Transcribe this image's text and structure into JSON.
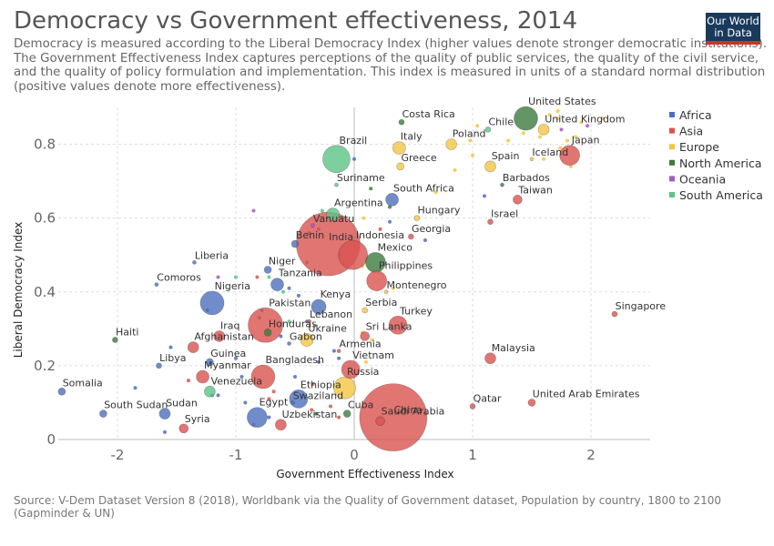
{
  "page": {
    "title": "Democracy vs Government effectiveness, 2014",
    "subtitle": "Democracy is measured according to the Liberal Democracy Index (higher values denote stronger democratic institutions). The Government Effectiveness Index captures perceptions of the quality of public services, the quality of the civil service, and the quality of policy formulation and implementation. This index is measured in units of a standard normal distribution (positive values denote more effectiveness).",
    "logo_line1": "Our World",
    "logo_line2": "in Data",
    "source": "Source: V-Dem Dataset Version 8 (2018), Worldbank via the Quality of Government dataset, Population by country, 1800 to 2100 (Gapminder & UN)"
  },
  "chart_data": {
    "type": "scatter",
    "xlabel": "Government Effectiveness Index",
    "ylabel": "Liberal Democracy Index",
    "xlim": [
      -2.5,
      2.5
    ],
    "ylim": [
      0,
      0.9
    ],
    "xticks": [
      -2,
      -1,
      0,
      1,
      2
    ],
    "yticks": [
      0,
      0.2,
      0.4,
      0.6,
      0.8
    ],
    "xtick_labels": [
      "-2",
      "-1",
      "0",
      "1",
      "2"
    ],
    "ytick_labels": [
      "0",
      "0.2",
      "0.4",
      "0.6",
      "0.8"
    ],
    "grid": true,
    "legend": "right",
    "series": [
      {
        "name": "Africa",
        "color": "#4c6fbd"
      },
      {
        "name": "Asia",
        "color": "#d9534f"
      },
      {
        "name": "Europe",
        "color": "#f5c542"
      },
      {
        "name": "North America",
        "color": "#3d7a3d"
      },
      {
        "name": "Oceania",
        "color": "#a659c4"
      },
      {
        "name": "South America",
        "color": "#5cc486"
      }
    ],
    "points": [
      {
        "label": "Costa Rica",
        "x": 0.4,
        "y": 0.86,
        "region": "North America",
        "size": 3
      },
      {
        "label": "Chile",
        "x": 1.13,
        "y": 0.84,
        "region": "South America",
        "size": 3
      },
      {
        "label": "United States",
        "x": 1.45,
        "y": 0.87,
        "region": "North America",
        "size": 13
      },
      {
        "label": "United Kingdom",
        "x": 1.6,
        "y": 0.84,
        "region": "Europe",
        "size": 6
      },
      {
        "label": "Japan",
        "x": 1.82,
        "y": 0.77,
        "region": "Asia",
        "size": 11
      },
      {
        "label": "Iceland",
        "x": 1.5,
        "y": 0.76,
        "region": "Europe",
        "size": 2
      },
      {
        "label": "Italy",
        "x": 0.38,
        "y": 0.79,
        "region": "Europe",
        "size": 7
      },
      {
        "label": "Poland",
        "x": 0.82,
        "y": 0.8,
        "region": "Europe",
        "size": 6
      },
      {
        "label": "Spain",
        "x": 1.15,
        "y": 0.74,
        "region": "Europe",
        "size": 6
      },
      {
        "label": "Greece",
        "x": 0.39,
        "y": 0.74,
        "region": "Europe",
        "size": 4
      },
      {
        "label": "Brazil",
        "x": -0.15,
        "y": 0.76,
        "region": "South America",
        "size": 15
      },
      {
        "label": "Barbados",
        "x": 1.25,
        "y": 0.69,
        "region": "North America",
        "size": 2
      },
      {
        "label": "Taiwan",
        "x": 1.38,
        "y": 0.65,
        "region": "Asia",
        "size": 5
      },
      {
        "label": "Suriname",
        "x": -0.15,
        "y": 0.69,
        "region": "South America",
        "size": 2
      },
      {
        "label": "South Africa",
        "x": 0.32,
        "y": 0.65,
        "region": "Africa",
        "size": 7
      },
      {
        "label": "Argentina",
        "x": -0.18,
        "y": 0.61,
        "region": "South America",
        "size": 7
      },
      {
        "label": "Hungary",
        "x": 0.53,
        "y": 0.6,
        "region": "Europe",
        "size": 3
      },
      {
        "label": "Israel",
        "x": 1.15,
        "y": 0.59,
        "region": "Asia",
        "size": 3
      },
      {
        "label": "Vanuatu",
        "x": -0.35,
        "y": 0.58,
        "region": "Oceania",
        "size": 2
      },
      {
        "label": "India",
        "x": -0.22,
        "y": 0.53,
        "region": "Asia",
        "size": 35
      },
      {
        "label": "Georgia",
        "x": 0.48,
        "y": 0.55,
        "region": "Asia",
        "size": 3
      },
      {
        "label": "Benin",
        "x": -0.5,
        "y": 0.53,
        "region": "Africa",
        "size": 4
      },
      {
        "label": "Indonesia",
        "x": -0.01,
        "y": 0.5,
        "region": "Asia",
        "size": 16
      },
      {
        "label": "Liberia",
        "x": -1.35,
        "y": 0.48,
        "region": "Africa",
        "size": 2
      },
      {
        "label": "Mexico",
        "x": 0.18,
        "y": 0.48,
        "region": "North America",
        "size": 11
      },
      {
        "label": "Niger",
        "x": -0.73,
        "y": 0.46,
        "region": "Africa",
        "size": 4
      },
      {
        "label": "Tanzania",
        "x": -0.65,
        "y": 0.42,
        "region": "Africa",
        "size": 7
      },
      {
        "label": "Comoros",
        "x": -1.67,
        "y": 0.42,
        "region": "Africa",
        "size": 2
      },
      {
        "label": "Philippines",
        "x": 0.19,
        "y": 0.43,
        "region": "Asia",
        "size": 11
      },
      {
        "label": "Montenegro",
        "x": 0.27,
        "y": 0.4,
        "region": "Europe",
        "size": 2
      },
      {
        "label": "Nigeria",
        "x": -1.2,
        "y": 0.37,
        "region": "Africa",
        "size": 13
      },
      {
        "label": "Kenya",
        "x": -0.3,
        "y": 0.36,
        "region": "Africa",
        "size": 8
      },
      {
        "label": "Serbia",
        "x": 0.09,
        "y": 0.35,
        "region": "Europe",
        "size": 3
      },
      {
        "label": "Singapore",
        "x": 2.2,
        "y": 0.34,
        "region": "Asia",
        "size": 3
      },
      {
        "label": "Pakistan",
        "x": -0.75,
        "y": 0.31,
        "region": "Asia",
        "size": 19
      },
      {
        "label": "Lebanon",
        "x": -0.38,
        "y": 0.32,
        "region": "Asia",
        "size": 2
      },
      {
        "label": "Turkey",
        "x": 0.37,
        "y": 0.31,
        "region": "Asia",
        "size": 10
      },
      {
        "label": "Haiti",
        "x": -2.02,
        "y": 0.27,
        "region": "North America",
        "size": 3
      },
      {
        "label": "Iraq",
        "x": -1.14,
        "y": 0.28,
        "region": "Asia",
        "size": 6
      },
      {
        "label": "Honduras",
        "x": -0.73,
        "y": 0.29,
        "region": "North America",
        "size": 4
      },
      {
        "label": "Sri Lanka",
        "x": 0.09,
        "y": 0.28,
        "region": "Asia",
        "size": 5
      },
      {
        "label": "Afghanistan",
        "x": -1.36,
        "y": 0.25,
        "region": "Asia",
        "size": 6
      },
      {
        "label": "Gabon",
        "x": -0.55,
        "y": 0.26,
        "region": "Africa",
        "size": 2
      },
      {
        "label": "Ukraine",
        "x": -0.4,
        "y": 0.27,
        "region": "Europe",
        "size": 7
      },
      {
        "label": "Armenia",
        "x": -0.13,
        "y": 0.24,
        "region": "Asia",
        "size": 2
      },
      {
        "label": "Guinea",
        "x": -1.22,
        "y": 0.21,
        "region": "Africa",
        "size": 4
      },
      {
        "label": "Libya",
        "x": -1.65,
        "y": 0.2,
        "region": "Africa",
        "size": 3
      },
      {
        "label": "Malaysia",
        "x": 1.15,
        "y": 0.22,
        "region": "Asia",
        "size": 6
      },
      {
        "label": "Myanmar",
        "x": -1.28,
        "y": 0.17,
        "region": "Asia",
        "size": 7
      },
      {
        "label": "Bangladesh",
        "x": -0.77,
        "y": 0.17,
        "region": "Asia",
        "size": 13
      },
      {
        "label": "Vietnam",
        "x": -0.03,
        "y": 0.19,
        "region": "Asia",
        "size": 10
      },
      {
        "label": "Russia",
        "x": -0.08,
        "y": 0.14,
        "region": "Europe",
        "size": 12
      },
      {
        "label": "Somalia",
        "x": -2.47,
        "y": 0.13,
        "region": "Africa",
        "size": 4
      },
      {
        "label": "Venezuela",
        "x": -1.22,
        "y": 0.13,
        "region": "South America",
        "size": 6
      },
      {
        "label": "Ethiopia",
        "x": -0.47,
        "y": 0.11,
        "region": "Africa",
        "size": 10
      },
      {
        "label": "Swaziland",
        "x": -0.52,
        "y": 0.1,
        "region": "Africa",
        "size": 2
      },
      {
        "label": "China",
        "x": 0.33,
        "y": 0.06,
        "region": "Asia",
        "size": 37
      },
      {
        "label": "Qatar",
        "x": 1.0,
        "y": 0.09,
        "region": "Asia",
        "size": 3
      },
      {
        "label": "United Arab Emirates",
        "x": 1.5,
        "y": 0.1,
        "region": "Asia",
        "size": 4
      },
      {
        "label": "South Sudan",
        "x": -2.12,
        "y": 0.07,
        "region": "Africa",
        "size": 4
      },
      {
        "label": "Sudan",
        "x": -1.6,
        "y": 0.07,
        "region": "Africa",
        "size": 6
      },
      {
        "label": "Egypt",
        "x": -0.82,
        "y": 0.06,
        "region": "Africa",
        "size": 11
      },
      {
        "label": "Cuba",
        "x": -0.06,
        "y": 0.07,
        "region": "North America",
        "size": 4
      },
      {
        "label": "Saudi Arabia",
        "x": 0.22,
        "y": 0.05,
        "region": "Asia",
        "size": 5
      },
      {
        "label": "Uzbekistan",
        "x": -0.62,
        "y": 0.04,
        "region": "Asia",
        "size": 6
      },
      {
        "label": "Syria",
        "x": -1.44,
        "y": 0.03,
        "region": "Asia",
        "size": 5
      }
    ],
    "minor_points": [
      {
        "x": 1.72,
        "y": 0.89,
        "region": "Europe"
      },
      {
        "x": 1.65,
        "y": 0.88,
        "region": "Europe"
      },
      {
        "x": 1.92,
        "y": 0.86,
        "region": "Europe"
      },
      {
        "x": 1.72,
        "y": 0.87,
        "region": "Europe"
      },
      {
        "x": 2.1,
        "y": 0.87,
        "region": "Europe"
      },
      {
        "x": 1.75,
        "y": 0.84,
        "region": "Oceania"
      },
      {
        "x": 1.97,
        "y": 0.85,
        "region": "Oceania"
      },
      {
        "x": 1.43,
        "y": 0.83,
        "region": "Europe"
      },
      {
        "x": 1.04,
        "y": 0.85,
        "region": "Europe"
      },
      {
        "x": 1.57,
        "y": 0.82,
        "region": "Europe"
      },
      {
        "x": 1.8,
        "y": 0.81,
        "region": "Europe"
      },
      {
        "x": 1.87,
        "y": 0.82,
        "region": "Europe"
      },
      {
        "x": 1.3,
        "y": 0.81,
        "region": "Europe"
      },
      {
        "x": 1.74,
        "y": 0.79,
        "region": "Europe"
      },
      {
        "x": 1.6,
        "y": 0.76,
        "region": "Europe"
      },
      {
        "x": 1.0,
        "y": 0.77,
        "region": "Europe"
      },
      {
        "x": 0.98,
        "y": 0.81,
        "region": "Europe"
      },
      {
        "x": 1.83,
        "y": 0.74,
        "region": "Europe"
      },
      {
        "x": 0.85,
        "y": 0.73,
        "region": "Europe"
      },
      {
        "x": 1.1,
        "y": 0.66,
        "region": "Africa"
      },
      {
        "x": 0.69,
        "y": 0.67,
        "region": "Europe"
      },
      {
        "x": 0.3,
        "y": 0.63,
        "region": "North America"
      },
      {
        "x": 0.14,
        "y": 0.68,
        "region": "North America"
      },
      {
        "x": 0.0,
        "y": 0.76,
        "region": "Africa"
      },
      {
        "x": -0.85,
        "y": 0.62,
        "region": "Oceania"
      },
      {
        "x": -0.27,
        "y": 0.62,
        "region": "South America"
      },
      {
        "x": -0.1,
        "y": 0.6,
        "region": "South America"
      },
      {
        "x": 0.08,
        "y": 0.6,
        "region": "Europe"
      },
      {
        "x": 0.3,
        "y": 0.59,
        "region": "Africa"
      },
      {
        "x": -0.3,
        "y": 0.57,
        "region": "Africa"
      },
      {
        "x": 0.22,
        "y": 0.57,
        "region": "Asia"
      },
      {
        "x": 0.6,
        "y": 0.54,
        "region": "Africa"
      },
      {
        "x": -0.38,
        "y": 0.56,
        "region": "Africa"
      },
      {
        "x": -0.12,
        "y": 0.5,
        "region": "South America"
      },
      {
        "x": -0.4,
        "y": 0.48,
        "region": "Oceania"
      },
      {
        "x": 0.07,
        "y": 0.47,
        "region": "Europe"
      },
      {
        "x": -0.72,
        "y": 0.44,
        "region": "South America"
      },
      {
        "x": -1.15,
        "y": 0.44,
        "region": "Oceania"
      },
      {
        "x": -1.0,
        "y": 0.44,
        "region": "South America"
      },
      {
        "x": -0.82,
        "y": 0.44,
        "region": "Asia"
      },
      {
        "x": -0.55,
        "y": 0.41,
        "region": "Africa"
      },
      {
        "x": -0.6,
        "y": 0.4,
        "region": "South America"
      },
      {
        "x": -0.47,
        "y": 0.39,
        "region": "Africa"
      },
      {
        "x": 0.33,
        "y": 0.41,
        "region": "Europe"
      },
      {
        "x": -0.78,
        "y": 0.35,
        "region": "Africa"
      },
      {
        "x": -1.24,
        "y": 0.35,
        "region": "Africa"
      },
      {
        "x": -0.8,
        "y": 0.33,
        "region": "Africa"
      },
      {
        "x": -0.55,
        "y": 0.32,
        "region": "South America"
      },
      {
        "x": -0.4,
        "y": 0.32,
        "region": "Africa"
      },
      {
        "x": 0.07,
        "y": 0.29,
        "region": "Europe"
      },
      {
        "x": -0.62,
        "y": 0.28,
        "region": "Africa"
      },
      {
        "x": 0.15,
        "y": 0.27,
        "region": "Europe"
      },
      {
        "x": -1.55,
        "y": 0.25,
        "region": "Africa"
      },
      {
        "x": -0.17,
        "y": 0.24,
        "region": "Africa"
      },
      {
        "x": -0.13,
        "y": 0.22,
        "region": "Africa"
      },
      {
        "x": -0.3,
        "y": 0.21,
        "region": "Africa"
      },
      {
        "x": -1.0,
        "y": 0.22,
        "region": "Africa"
      },
      {
        "x": 0.1,
        "y": 0.21,
        "region": "Europe"
      },
      {
        "x": -0.5,
        "y": 0.17,
        "region": "Africa"
      },
      {
        "x": -0.95,
        "y": 0.17,
        "region": "Africa"
      },
      {
        "x": -1.85,
        "y": 0.14,
        "region": "Africa"
      },
      {
        "x": -1.4,
        "y": 0.16,
        "region": "Asia"
      },
      {
        "x": -0.35,
        "y": 0.15,
        "region": "Asia"
      },
      {
        "x": -0.68,
        "y": 0.13,
        "region": "Asia"
      },
      {
        "x": -1.2,
        "y": 0.12,
        "region": "Africa"
      },
      {
        "x": -1.15,
        "y": 0.12,
        "region": "Africa"
      },
      {
        "x": -0.72,
        "y": 0.11,
        "region": "Asia"
      },
      {
        "x": -0.92,
        "y": 0.1,
        "region": "Africa"
      },
      {
        "x": -0.36,
        "y": 0.08,
        "region": "Asia"
      },
      {
        "x": -0.32,
        "y": 0.07,
        "region": "North America"
      },
      {
        "x": -0.72,
        "y": 0.06,
        "region": "Africa"
      },
      {
        "x": -0.85,
        "y": 0.04,
        "region": "Asia"
      },
      {
        "x": -0.13,
        "y": 0.06,
        "region": "Asia"
      },
      {
        "x": -0.2,
        "y": 0.09,
        "region": "Asia"
      },
      {
        "x": -1.6,
        "y": 0.02,
        "region": "Africa"
      },
      {
        "x": 0.6,
        "y": 0.07,
        "region": "Asia"
      }
    ]
  }
}
